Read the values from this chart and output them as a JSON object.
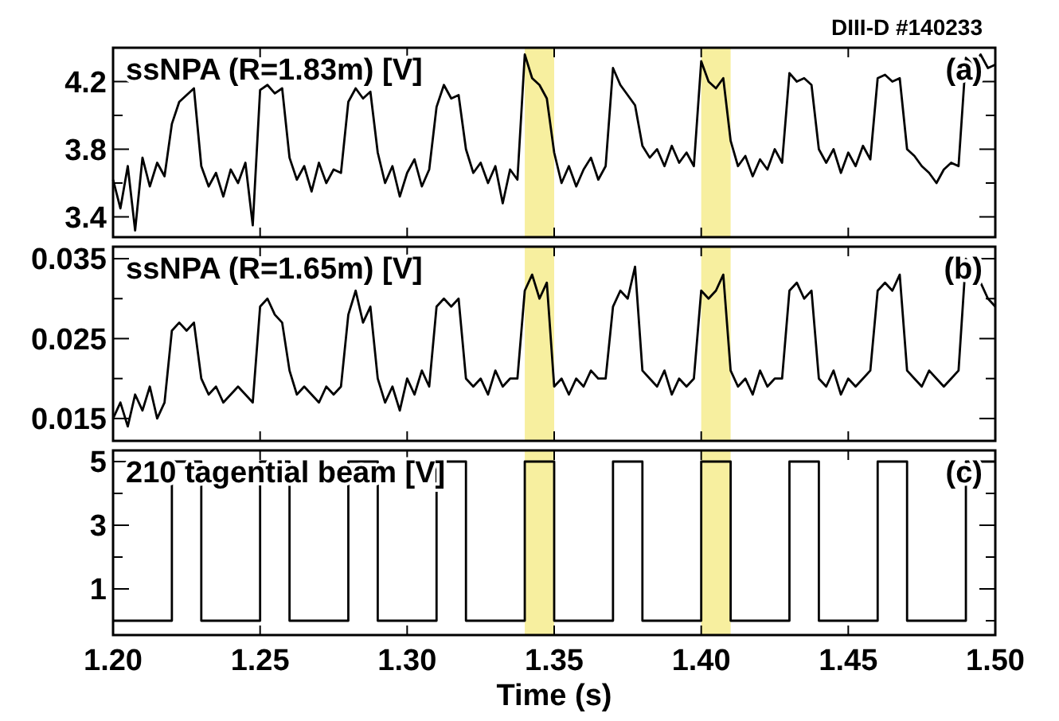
{
  "chart_data": [
    {
      "type": "line",
      "title": "ssNPA (R=1.83m) [V]",
      "annotations": [
        "DIII-D #140233",
        "(a)"
      ],
      "tick_labels": "y",
      "grid": false,
      "xlim": [
        1.2,
        1.5
      ],
      "xticks": [
        {
          "value": 1.2,
          "label": null
        },
        {
          "value": 1.25,
          "label": null
        },
        {
          "value": 1.3,
          "label": null
        },
        {
          "value": 1.35,
          "label": null
        },
        {
          "value": 1.4,
          "label": null
        },
        {
          "value": 1.45,
          "label": null
        },
        {
          "value": 1.5,
          "label": null
        }
      ],
      "ylim": [
        3.28,
        4.4
      ],
      "yticks": [
        3.4,
        {
          "value": 3.6,
          "label": null
        },
        3.8,
        {
          "value": 4.0,
          "label": null
        },
        4.2
      ],
      "bands": [
        {
          "axis": "x",
          "from": 1.34,
          "to": 1.35,
          "color": "#f7ef9f"
        },
        {
          "axis": "x",
          "from": 1.4,
          "to": 1.41,
          "color": "#f7ef9f"
        }
      ],
      "x": [
        1.2,
        1.2025,
        1.205,
        1.2075,
        1.21,
        1.2125,
        1.215,
        1.2175,
        1.22,
        1.2225,
        1.225,
        1.2275,
        1.23,
        1.2325,
        1.235,
        1.2375,
        1.24,
        1.2425,
        1.245,
        1.2475,
        1.25,
        1.2525,
        1.255,
        1.2575,
        1.26,
        1.2625,
        1.265,
        1.2675,
        1.27,
        1.2725,
        1.275,
        1.2775,
        1.28,
        1.2825,
        1.285,
        1.2875,
        1.29,
        1.2925,
        1.295,
        1.2975,
        1.3,
        1.3025,
        1.305,
        1.3075,
        1.31,
        1.3125,
        1.315,
        1.3175,
        1.32,
        1.3225,
        1.325,
        1.3275,
        1.33,
        1.3325,
        1.335,
        1.3375,
        1.34,
        1.3425,
        1.345,
        1.3475,
        1.35,
        1.3525,
        1.355,
        1.3575,
        1.36,
        1.3625,
        1.365,
        1.3675,
        1.37,
        1.3725,
        1.375,
        1.3775,
        1.38,
        1.3825,
        1.385,
        1.3875,
        1.39,
        1.3925,
        1.395,
        1.3975,
        1.4,
        1.4025,
        1.405,
        1.4075,
        1.41,
        1.4125,
        1.415,
        1.4175,
        1.42,
        1.4225,
        1.425,
        1.4275,
        1.43,
        1.4325,
        1.435,
        1.4375,
        1.44,
        1.4425,
        1.445,
        1.4475,
        1.45,
        1.4525,
        1.455,
        1.4575,
        1.46,
        1.4625,
        1.465,
        1.4675,
        1.47,
        1.4725,
        1.475,
        1.4775,
        1.48,
        1.4825,
        1.485,
        1.4875,
        1.49,
        1.4925,
        1.495,
        1.4975,
        1.5
      ],
      "series": [
        {
          "color": "#000000",
          "values": [
            3.62,
            3.45,
            3.7,
            3.32,
            3.75,
            3.58,
            3.72,
            3.64,
            3.95,
            4.08,
            4.12,
            4.16,
            3.7,
            3.58,
            3.66,
            3.52,
            3.68,
            3.6,
            3.72,
            3.35,
            4.15,
            4.18,
            4.13,
            4.16,
            3.75,
            3.62,
            3.7,
            3.55,
            3.72,
            3.6,
            3.68,
            3.66,
            4.08,
            4.16,
            4.1,
            4.14,
            3.78,
            3.6,
            3.7,
            3.52,
            3.66,
            3.74,
            3.58,
            3.68,
            4.05,
            4.18,
            4.1,
            4.12,
            3.8,
            3.66,
            3.72,
            3.6,
            3.7,
            3.48,
            3.68,
            3.62,
            4.36,
            4.22,
            4.18,
            4.1,
            3.78,
            3.6,
            3.7,
            3.58,
            3.68,
            3.75,
            3.62,
            3.7,
            4.28,
            4.18,
            4.12,
            4.06,
            3.82,
            3.75,
            3.8,
            3.7,
            3.82,
            3.72,
            3.78,
            3.7,
            4.32,
            4.2,
            4.16,
            4.22,
            3.85,
            3.7,
            3.76,
            3.64,
            3.74,
            3.68,
            3.8,
            3.72,
            4.25,
            4.2,
            4.22,
            4.18,
            3.8,
            3.72,
            3.8,
            3.66,
            3.78,
            3.7,
            3.82,
            3.74,
            4.22,
            4.24,
            4.2,
            4.22,
            3.8,
            3.76,
            3.7,
            3.66,
            3.6,
            3.68,
            3.72,
            3.7,
            4.34,
            4.3,
            4.36,
            4.28,
            4.3
          ]
        }
      ]
    },
    {
      "type": "line",
      "title": "ssNPA (R=1.65m) [V]",
      "annotations": [
        "(b)"
      ],
      "tick_labels": "y",
      "grid": false,
      "xlim": [
        1.2,
        1.5
      ],
      "xticks": [
        {
          "value": 1.2,
          "label": null
        },
        {
          "value": 1.25,
          "label": null
        },
        {
          "value": 1.3,
          "label": null
        },
        {
          "value": 1.35,
          "label": null
        },
        {
          "value": 1.4,
          "label": null
        },
        {
          "value": 1.45,
          "label": null
        },
        {
          "value": 1.5,
          "label": null
        }
      ],
      "ylim": [
        0.0122,
        0.0365
      ],
      "yticks": [
        0.015,
        {
          "value": 0.02,
          "label": null
        },
        0.025,
        {
          "value": 0.03,
          "label": null
        },
        0.035
      ],
      "bands": [
        {
          "axis": "x",
          "from": 1.34,
          "to": 1.35,
          "color": "#f7ef9f"
        },
        {
          "axis": "x",
          "from": 1.4,
          "to": 1.41,
          "color": "#f7ef9f"
        }
      ],
      "x": [
        1.2,
        1.2025,
        1.205,
        1.2075,
        1.21,
        1.2125,
        1.215,
        1.2175,
        1.22,
        1.2225,
        1.225,
        1.2275,
        1.23,
        1.2325,
        1.235,
        1.2375,
        1.24,
        1.2425,
        1.245,
        1.2475,
        1.25,
        1.2525,
        1.255,
        1.2575,
        1.26,
        1.2625,
        1.265,
        1.2675,
        1.27,
        1.2725,
        1.275,
        1.2775,
        1.28,
        1.2825,
        1.285,
        1.2875,
        1.29,
        1.2925,
        1.295,
        1.2975,
        1.3,
        1.3025,
        1.305,
        1.3075,
        1.31,
        1.3125,
        1.315,
        1.3175,
        1.32,
        1.3225,
        1.325,
        1.3275,
        1.33,
        1.3325,
        1.335,
        1.3375,
        1.34,
        1.3425,
        1.345,
        1.3475,
        1.35,
        1.3525,
        1.355,
        1.3575,
        1.36,
        1.3625,
        1.365,
        1.3675,
        1.37,
        1.3725,
        1.375,
        1.3775,
        1.38,
        1.3825,
        1.385,
        1.3875,
        1.39,
        1.3925,
        1.395,
        1.3975,
        1.4,
        1.4025,
        1.405,
        1.4075,
        1.41,
        1.4125,
        1.415,
        1.4175,
        1.42,
        1.4225,
        1.425,
        1.4275,
        1.43,
        1.4325,
        1.435,
        1.4375,
        1.44,
        1.4425,
        1.445,
        1.4475,
        1.45,
        1.4525,
        1.455,
        1.4575,
        1.46,
        1.4625,
        1.465,
        1.4675,
        1.47,
        1.4725,
        1.475,
        1.4775,
        1.48,
        1.4825,
        1.485,
        1.4875,
        1.49,
        1.4925,
        1.495,
        1.4975,
        1.5
      ],
      "series": [
        {
          "color": "#000000",
          "values": [
            0.015,
            0.017,
            0.014,
            0.018,
            0.016,
            0.019,
            0.015,
            0.017,
            0.026,
            0.027,
            0.026,
            0.027,
            0.02,
            0.018,
            0.019,
            0.017,
            0.018,
            0.019,
            0.018,
            0.017,
            0.029,
            0.03,
            0.028,
            0.027,
            0.021,
            0.018,
            0.019,
            0.018,
            0.017,
            0.019,
            0.018,
            0.019,
            0.028,
            0.031,
            0.027,
            0.029,
            0.02,
            0.017,
            0.019,
            0.016,
            0.02,
            0.018,
            0.021,
            0.019,
            0.029,
            0.03,
            0.029,
            0.03,
            0.02,
            0.019,
            0.02,
            0.018,
            0.021,
            0.019,
            0.02,
            0.02,
            0.031,
            0.033,
            0.03,
            0.032,
            0.019,
            0.02,
            0.018,
            0.02,
            0.019,
            0.021,
            0.02,
            0.02,
            0.029,
            0.031,
            0.03,
            0.034,
            0.021,
            0.02,
            0.019,
            0.021,
            0.018,
            0.02,
            0.019,
            0.02,
            0.031,
            0.03,
            0.031,
            0.033,
            0.021,
            0.019,
            0.02,
            0.018,
            0.021,
            0.019,
            0.02,
            0.02,
            0.031,
            0.032,
            0.03,
            0.031,
            0.02,
            0.019,
            0.021,
            0.018,
            0.02,
            0.019,
            0.02,
            0.021,
            0.031,
            0.032,
            0.031,
            0.033,
            0.021,
            0.02,
            0.019,
            0.021,
            0.02,
            0.019,
            0.02,
            0.021,
            0.035,
            0.033,
            0.032,
            0.03,
            0.029
          ]
        }
      ]
    },
    {
      "type": "line",
      "title": "210 tagential beam [V]",
      "annotations": [
        "(c)"
      ],
      "xlabel": "Time (s)",
      "grid": false,
      "xlim": [
        1.2,
        1.5
      ],
      "xticks": [
        {
          "value": 1.2,
          "label": "1.20"
        },
        {
          "value": 1.25,
          "label": "1.25"
        },
        {
          "value": 1.3,
          "label": "1.30"
        },
        {
          "value": 1.35,
          "label": "1.35"
        },
        {
          "value": 1.4,
          "label": "1.40"
        },
        {
          "value": 1.45,
          "label": "1.45"
        },
        {
          "value": 1.5,
          "label": "1.50"
        }
      ],
      "ylim": [
        -0.45,
        5.35
      ],
      "yticks": [
        {
          "value": 0,
          "label": null
        },
        1,
        {
          "value": 2,
          "label": null
        },
        3,
        {
          "value": 4,
          "label": null
        },
        5
      ],
      "bands": [
        {
          "axis": "x",
          "from": 1.34,
          "to": 1.35,
          "color": "#f7ef9f"
        },
        {
          "axis": "x",
          "from": 1.4,
          "to": 1.41,
          "color": "#f7ef9f"
        }
      ],
      "x": [
        1.2,
        1.22,
        1.22,
        1.23,
        1.23,
        1.25,
        1.25,
        1.26,
        1.26,
        1.28,
        1.28,
        1.29,
        1.29,
        1.31,
        1.31,
        1.32,
        1.32,
        1.34,
        1.34,
        1.35,
        1.35,
        1.37,
        1.37,
        1.38,
        1.38,
        1.4,
        1.4,
        1.41,
        1.41,
        1.43,
        1.43,
        1.44,
        1.44,
        1.46,
        1.46,
        1.47,
        1.47,
        1.49,
        1.49,
        1.5
      ],
      "series": [
        {
          "color": "#000000",
          "values": [
            0,
            0,
            5,
            5,
            0,
            0,
            5,
            5,
            0,
            0,
            5,
            5,
            0,
            0,
            5,
            5,
            0,
            0,
            5,
            5,
            0,
            0,
            5,
            5,
            0,
            0,
            5,
            5,
            0,
            0,
            5,
            5,
            0,
            0,
            5,
            5,
            0,
            0,
            5,
            5
          ]
        }
      ]
    }
  ]
}
